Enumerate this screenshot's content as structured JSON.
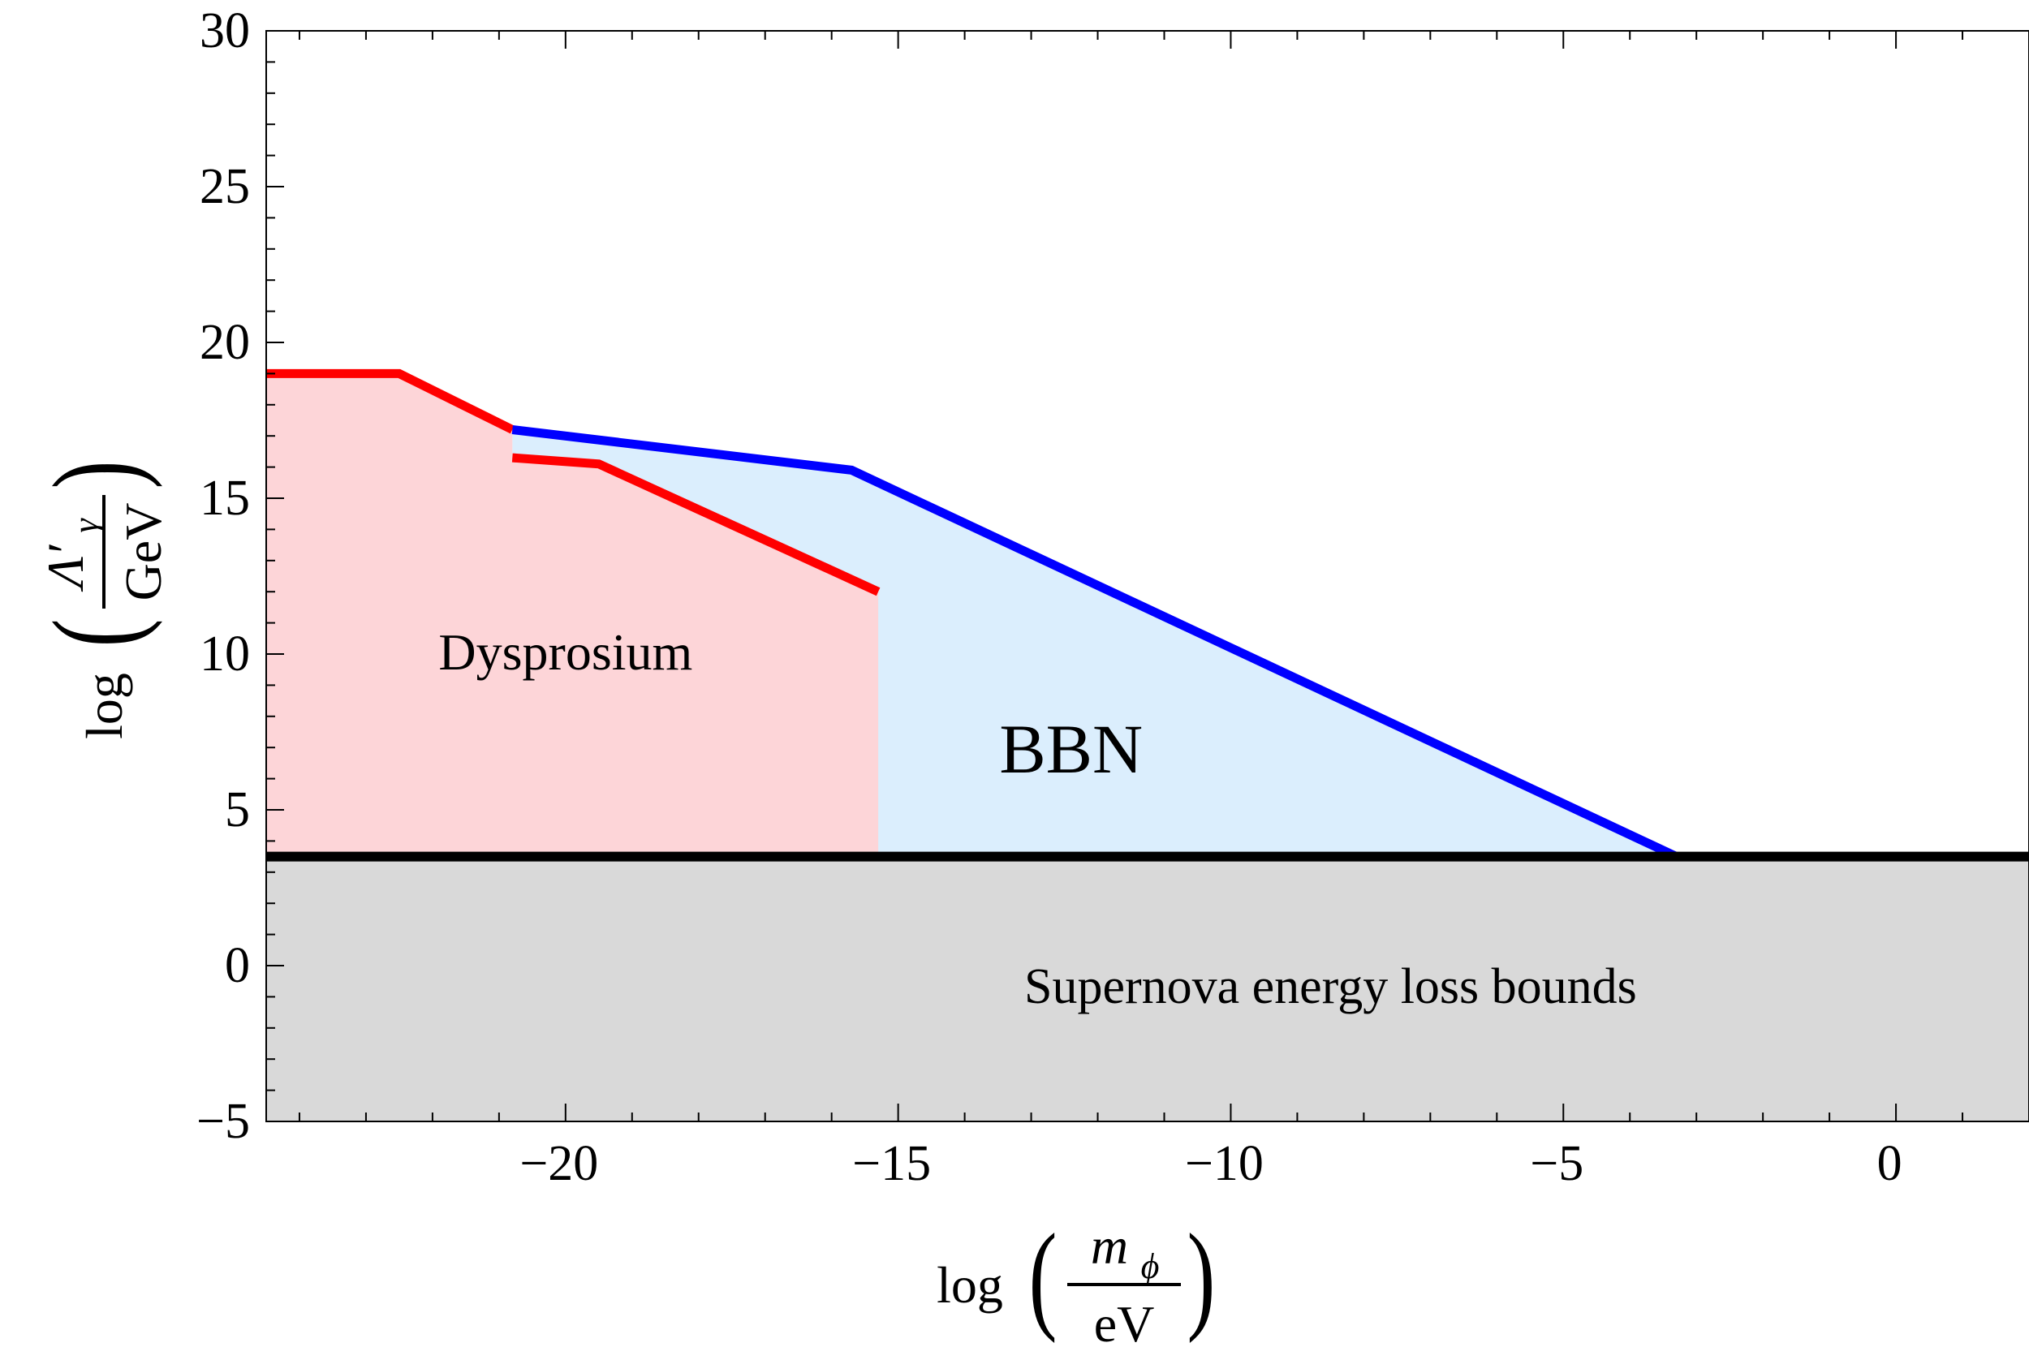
{
  "chart_data": {
    "type": "area",
    "title": "",
    "xlim": [
      -24.5,
      2
    ],
    "ylim": [
      -5,
      30
    ],
    "x_ticks": [
      -20,
      -15,
      -10,
      -5,
      0
    ],
    "y_ticks": [
      -5,
      0,
      5,
      10,
      15,
      20,
      25,
      30
    ],
    "x_tick_labels": [
      "−20",
      "−15",
      "−10",
      "−5",
      "0"
    ],
    "y_tick_labels": [
      "−5",
      "0",
      "5",
      "10",
      "15",
      "20",
      "25",
      "30"
    ],
    "xlabel": {
      "prefix": "log",
      "numerator": "m",
      "numerator_sub": "ϕ",
      "denominator": "eV"
    },
    "ylabel": {
      "prefix": "log",
      "numerator": "Λ′",
      "numerator_sub": "γ",
      "denominator": "GeV"
    },
    "colors": {
      "dysprosium_fill": "#fdd5d8",
      "dysprosium_line": "#ff0000",
      "bbn_fill": "#dbeefd",
      "bbn_line": "#0000ff",
      "supernova_fill": "#d9d9d9",
      "supernova_line": "#000000"
    },
    "regions": [
      {
        "name": "Supernova energy loss bounds",
        "label": "Supernova energy loss bounds",
        "label_at": [
          -8.5,
          -1.2
        ],
        "boundary": [
          [
            -24.5,
            3.5
          ],
          [
            2,
            3.5
          ]
        ]
      },
      {
        "name": "BBN",
        "label": "BBN",
        "label_at": [
          -12.4,
          6.2
        ],
        "boundary": [
          [
            -20.8,
            17.2
          ],
          [
            -15.7,
            15.9
          ],
          [
            -3.3,
            3.5
          ]
        ]
      },
      {
        "name": "Dysprosium",
        "label": "Dysprosium",
        "label_at": [
          -20.0,
          9.5
        ],
        "boundary_upper": [
          [
            -24.5,
            19.0
          ],
          [
            -22.5,
            19.0
          ],
          [
            -20.8,
            17.2
          ]
        ],
        "boundary_lower": [
          [
            -20.8,
            16.3
          ],
          [
            -19.5,
            16.1
          ],
          [
            -15.3,
            12.0
          ]
        ],
        "fill_right_edge": -15.3
      }
    ]
  }
}
